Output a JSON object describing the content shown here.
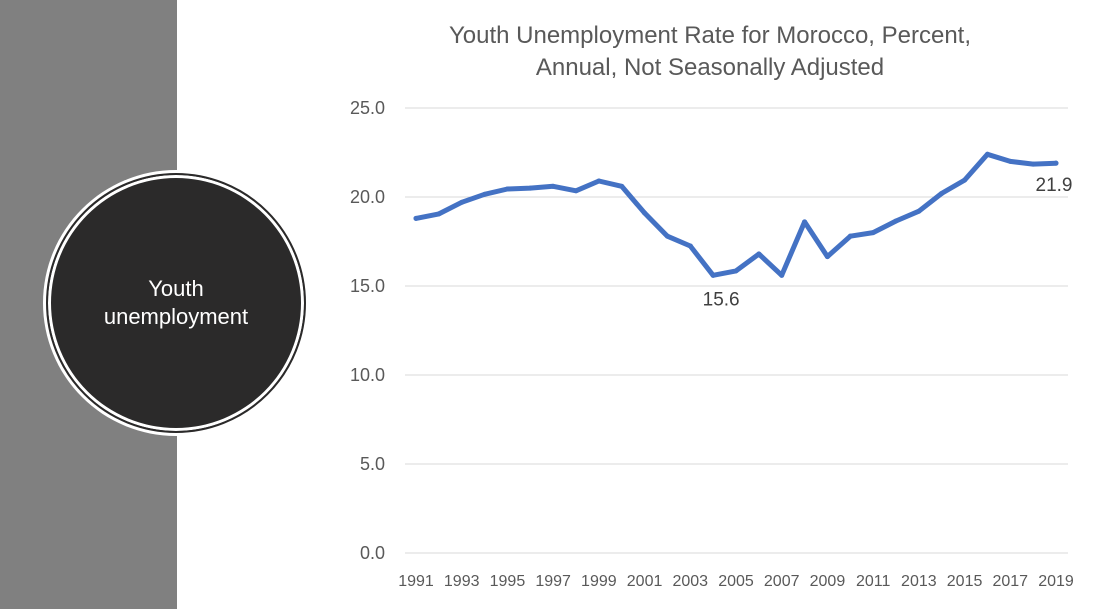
{
  "side_panel": {
    "circle_label_line1": "Youth",
    "circle_label_line2": "unemployment"
  },
  "chart_data": {
    "type": "line",
    "title_line1": "Youth Unemployment Rate for Morocco, Percent,",
    "title_line2": "Annual, Not Seasonally Adjusted",
    "xlabel": "",
    "ylabel": "",
    "ylim": [
      0,
      25
    ],
    "yticks": [
      "0.0",
      "5.0",
      "10.0",
      "15.0",
      "20.0",
      "25.0"
    ],
    "xtick_labels": [
      "1991",
      "1993",
      "1995",
      "1997",
      "1999",
      "2001",
      "2003",
      "2005",
      "2007",
      "2009",
      "2011",
      "2013",
      "2015",
      "2017",
      "2019"
    ],
    "grid": true,
    "series_color": "#4472c4",
    "x": [
      1991,
      1992,
      1993,
      1994,
      1995,
      1996,
      1997,
      1998,
      1999,
      2000,
      2001,
      2002,
      2003,
      2004,
      2005,
      2006,
      2007,
      2008,
      2009,
      2010,
      2011,
      2012,
      2013,
      2014,
      2015,
      2016,
      2017,
      2018,
      2019
    ],
    "series": [
      {
        "values": [
          18.8,
          19.05,
          19.7,
          20.15,
          20.45,
          20.5,
          20.6,
          20.35,
          20.9,
          20.6,
          19.1,
          17.8,
          17.25,
          15.6,
          15.85,
          16.8,
          15.6,
          18.6,
          16.65,
          17.8,
          18.0,
          18.65,
          19.2,
          20.2,
          20.95,
          22.4,
          22.0,
          21.85,
          21.9
        ]
      }
    ],
    "annotations": [
      {
        "x": 2004,
        "text": "15.6"
      },
      {
        "x": 2019,
        "text": "21.9"
      }
    ]
  }
}
